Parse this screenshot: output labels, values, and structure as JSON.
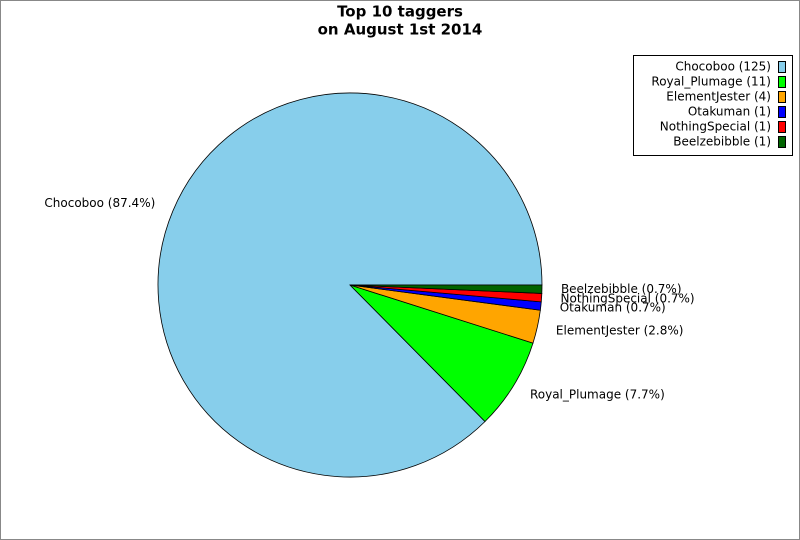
{
  "chart_data": {
    "type": "pie",
    "title": "Top 10 taggers",
    "subtitle": "on August 1st 2014",
    "categories": [
      "Chocoboo",
      "Royal_Plumage",
      "ElementJester",
      "Otakuman",
      "NothingSpecial",
      "Beelzebibble"
    ],
    "values": [
      125,
      11,
      4,
      1,
      1,
      1
    ],
    "value_labels": [
      "Chocoboo (87.4%)",
      "Royal_Plumage (7.7%)",
      "ElementJester (2.8%)",
      "Otakuman (0.7%)",
      "NothingSpecial (0.7%)",
      "Beelzebibble (0.7%)"
    ],
    "legend_labels": [
      "Chocoboo (125)",
      "Royal_Plumage (11)",
      "ElementJester (4)",
      "Otakuman (1)",
      "NothingSpecial (1)",
      "Beelzebibble (1)"
    ],
    "colors": [
      "#87ceeb",
      "#00ff00",
      "#ffa500",
      "#0000ff",
      "#ff0000",
      "#006400"
    ],
    "legend": "upper right"
  }
}
